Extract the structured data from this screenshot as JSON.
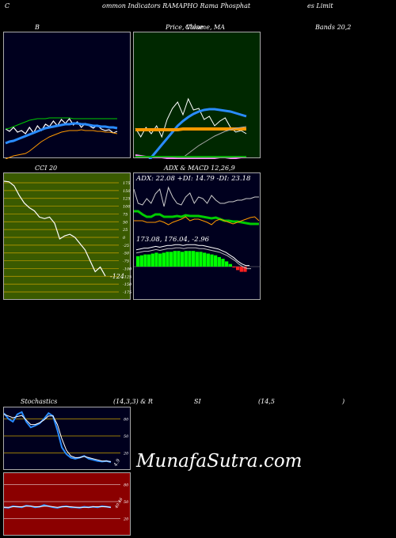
{
  "header": {
    "p1": "C",
    "p2": "ommon  Indicators RAMAPHO Rama  Phosphat",
    "p3": "es Limit"
  },
  "titles": {
    "b": "B",
    "price": "Price,  Volume,  MA",
    "price_overlap": "Close",
    "bands": "Bands 20,2",
    "cci": "CCI 20",
    "adx": "ADX  & MACD 12,26,9",
    "stoch_a": "Stochastics",
    "stoch_b": "(14,3,3) & R",
    "rsi_a": "SI",
    "rsi_b": "(14,5",
    "rsi_c": ")"
  },
  "adx_text": {
    "line1": "ADX: 22.08  +DI: 14.79 -DI: 23.18",
    "macd": "173.08,  176.04,  -2.96"
  },
  "watermark": "MunafaSutra.com",
  "colors": {
    "navy": "#00001e",
    "green_bg": "#002800",
    "olive": "#3a5a00",
    "red_bg": "#8b0000",
    "blue": "#2a8cff",
    "orange": "#ff9900"
  },
  "chart_data": [
    {
      "type": "line",
      "name": "bollinger",
      "series": [
        {
          "name": "close",
          "color": "#ffffff",
          "values": [
            122,
            125,
            120,
            126,
            124,
            128,
            120,
            127,
            118,
            124,
            116,
            119,
            112,
            118,
            110,
            115,
            109,
            117,
            113,
            120,
            115,
            118,
            121,
            117,
            122,
            124,
            123,
            127,
            125
          ]
        },
        {
          "name": "upper",
          "color": "#00cc00",
          "values": [
            122,
            121,
            119,
            117,
            115,
            113,
            111,
            110,
            109,
            109,
            109,
            108,
            108,
            108,
            108,
            108,
            108,
            109,
            109,
            109,
            109,
            109,
            109,
            109,
            109,
            109,
            109,
            109,
            109
          ]
        },
        {
          "name": "middle",
          "color": "#2a8cff",
          "values": [
            140,
            138,
            137,
            135,
            133,
            131,
            129,
            127,
            125,
            123,
            121,
            120,
            119,
            118,
            117,
            116,
            116,
            115,
            115,
            116,
            116,
            117,
            118,
            118,
            119,
            119,
            120,
            120,
            121
          ]
        },
        {
          "name": "lower",
          "color": "#ff9900",
          "values": [
            160,
            158,
            156,
            155,
            154,
            153,
            150,
            146,
            142,
            138,
            135,
            132,
            130,
            128,
            126,
            125,
            124,
            124,
            124,
            123,
            124,
            124,
            124,
            125,
            125,
            126,
            126,
            127,
            128
          ]
        }
      ]
    },
    {
      "type": "line",
      "name": "price_ma",
      "series": [
        {
          "name": "price",
          "color": "#ffffff",
          "values": [
            121,
            132,
            120,
            128,
            118,
            132,
            110,
            96,
            88,
            104,
            84,
            98,
            96,
            110,
            106,
            118,
            112,
            108,
            120,
            126,
            124,
            128
          ]
        },
        {
          "name": "ma_short",
          "color": "#2a8cff",
          "values": [
            178,
            172,
            166,
            158,
            150,
            142,
            134,
            126,
            118,
            112,
            107,
            103,
            100,
            98,
            97,
            97,
            98,
            99,
            100,
            102,
            104,
            106
          ]
        },
        {
          "name": "ma_long_orange",
          "color": "#ff9900",
          "values": [
            123,
            123,
            123,
            123,
            123,
            123,
            123,
            123,
            123,
            122,
            122,
            122,
            122,
            122,
            122,
            122,
            122,
            122,
            122,
            122,
            122,
            122
          ]
        },
        {
          "name": "ma_long_white",
          "color": "#aaaaaa",
          "values": [
            185,
            184,
            183,
            181,
            179,
            176,
            172,
            168,
            163,
            158,
            153,
            148,
            143,
            139,
            135,
            131,
            128,
            125,
            123,
            121,
            120,
            119
          ]
        },
        {
          "name": "ma_pink",
          "color": "#ff88ff",
          "values": [
            155,
            156,
            157,
            157,
            158,
            158,
            159,
            159,
            160,
            160,
            160,
            160,
            160,
            160,
            160,
            160,
            161,
            161,
            160,
            159,
            158,
            157
          ]
        }
      ]
    },
    {
      "type": "line",
      "name": "cci",
      "ticks": [
        175,
        150,
        125,
        100,
        75,
        50,
        25,
        0,
        -25,
        -50,
        -75,
        -100,
        -125,
        -150,
        -175
      ],
      "values": [
        180,
        178,
        165,
        135,
        110,
        95,
        85,
        65,
        60,
        65,
        45,
        -5,
        5,
        10,
        0,
        -20,
        -40,
        -75,
        -110,
        -95,
        -124
      ],
      "last_label": "-124"
    },
    {
      "type": "line",
      "name": "adx",
      "series": [
        {
          "name": "adx_white",
          "color": "#cccccc",
          "values": [
            20,
            38,
            40,
            32,
            38,
            26,
            20,
            42,
            18,
            30,
            38,
            40,
            30,
            25,
            38,
            30,
            32,
            38,
            28,
            34,
            38,
            38,
            36,
            36,
            34,
            34,
            32,
            32,
            30,
            30
          ]
        },
        {
          "name": "adx_green",
          "color": "#00cc00",
          "values": [
            48,
            48,
            52,
            55,
            55,
            52,
            52,
            55,
            55,
            55,
            54,
            55,
            53,
            54,
            54,
            54,
            55,
            56,
            57,
            56,
            58,
            60,
            60,
            61,
            61,
            62,
            63,
            64,
            64,
            64
          ]
        },
        {
          "name": "adx_orange",
          "color": "#ff9900",
          "values": [
            60,
            60,
            60,
            62,
            62,
            62,
            60,
            62,
            65,
            62,
            60,
            58,
            55,
            60,
            58,
            58,
            60,
            62,
            65,
            60,
            58,
            60,
            62,
            64,
            62,
            60,
            58,
            56,
            55,
            60
          ]
        }
      ]
    },
    {
      "type": "bar",
      "name": "macd",
      "values": [
        12,
        13,
        14,
        14,
        15,
        16,
        15,
        16,
        17,
        17,
        18,
        18,
        17,
        18,
        18,
        18,
        17,
        17,
        16,
        15,
        14,
        13,
        11,
        9,
        6,
        3,
        -1,
        -4,
        -6,
        -6
      ]
    },
    {
      "type": "line",
      "name": "stochastics",
      "ticks": [
        80,
        50,
        20
      ],
      "series": [
        {
          "name": "k",
          "color": "#2a8cff",
          "values": [
            90,
            80,
            75,
            88,
            92,
            75,
            65,
            68,
            72,
            80,
            90,
            85,
            60,
            30,
            18,
            12,
            10,
            12,
            15,
            10,
            8,
            6,
            5,
            6,
            4
          ]
        },
        {
          "name": "d",
          "color": "#ffffff",
          "values": [
            88,
            85,
            82,
            84,
            86,
            78,
            70,
            70,
            73,
            78,
            85,
            85,
            70,
            45,
            25,
            15,
            12,
            12,
            14,
            12,
            10,
            8,
            6,
            6,
            5
          ]
        }
      ],
      "last_label": "4.9"
    },
    {
      "type": "line",
      "name": "rsi",
      "ticks": [
        80,
        50,
        20
      ],
      "series": [
        {
          "name": "rsi",
          "color": "#2a8cff",
          "values": [
            40,
            39,
            42,
            41,
            40,
            43,
            42,
            40,
            41,
            44,
            42,
            40,
            39,
            41,
            42,
            40,
            40,
            39,
            41,
            40,
            41,
            40,
            42,
            41,
            40
          ]
        },
        {
          "name": "rsi_ma",
          "color": "#ffffff",
          "values": [
            40,
            40,
            41,
            41,
            41,
            42,
            42,
            41,
            41,
            42,
            42,
            41,
            40,
            41,
            41,
            41,
            40,
            40,
            40,
            40,
            41,
            41,
            41,
            41,
            40
          ]
        }
      ],
      "last_label": "40.46"
    }
  ]
}
